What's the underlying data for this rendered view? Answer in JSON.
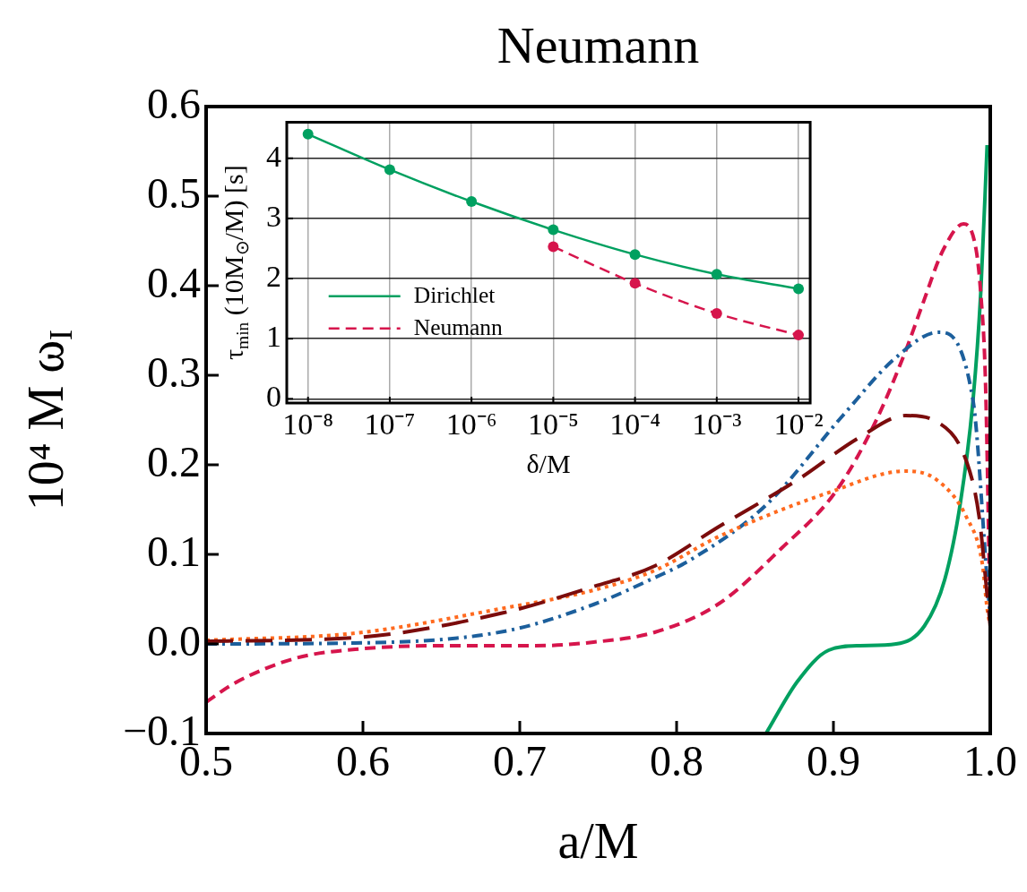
{
  "chart_data": [
    {
      "type": "line",
      "title": "Neumann",
      "xlabel": "a/M",
      "ylabel": "10⁴ M ω$_{I}$",
      "xlim": [
        0.5,
        1.0
      ],
      "ylim": [
        -0.1,
        0.6
      ],
      "xticks": [
        0.5,
        0.6,
        0.7,
        0.8,
        0.9,
        {
          "value": 1.0,
          "label": "1.0"
        }
      ],
      "yticks": [
        {
          "value": -0.1,
          "label": "−0.1"
        },
        {
          "value": 0,
          "label": "0.0"
        },
        0.1,
        0.2,
        0.3,
        0.4,
        0.5,
        0.6
      ],
      "series": [
        {
          "color": "#7b0c0c",
          "line_style": "longdashed",
          "x": [
            0.5,
            0.595,
            0.69,
            0.747,
            0.786,
            0.827,
            0.877,
            0.917,
            0.946,
            0.966,
            0.985,
            0.993,
            0.998,
            1.0
          ],
          "values": [
            0.003,
            0.007,
            0.035,
            0.064,
            0.087,
            0.131,
            0.183,
            0.231,
            0.255,
            0.248,
            0.203,
            0.141,
            0.055,
            0.02
          ]
        },
        {
          "color": "#ff6a1f",
          "line_style": "dotted",
          "x": [
            0.5,
            0.595,
            0.69,
            0.747,
            0.786,
            0.827,
            0.897,
            0.946,
            0.966,
            0.985,
            0.995,
            0.998,
            1.0
          ],
          "values": [
            0.004,
            0.012,
            0.04,
            0.06,
            0.082,
            0.12,
            0.169,
            0.193,
            0.183,
            0.141,
            0.089,
            0.04,
            0.02
          ]
        },
        {
          "color": "#1c5f9c",
          "line_style": "dashdot",
          "x": [
            0.5,
            0.595,
            0.69,
            0.747,
            0.786,
            0.808,
            0.857,
            0.906,
            0.94,
            0.967,
            0.989,
            0.998,
            1.0
          ],
          "values": [
            0,
            0.001,
            0.014,
            0.044,
            0.074,
            0.093,
            0.155,
            0.255,
            0.32,
            0.348,
            0.272,
            0.072,
            0.03
          ]
        },
        {
          "color": "#d6154c",
          "line_style": "dashed",
          "x": [
            0.5,
            0.519,
            0.557,
            0.595,
            0.653,
            0.71,
            0.747,
            0.786,
            0.827,
            0.867,
            0.901,
            0.926,
            0.946,
            0.957,
            0.97,
            0.983,
            0.991,
            0.994,
            0.997,
            1.0
          ],
          "values": [
            -0.065,
            -0.043,
            -0.016,
            -0.006,
            -0.002,
            -0.002,
            0.002,
            0.013,
            0.045,
            0.107,
            0.169,
            0.245,
            0.327,
            0.38,
            0.44,
            0.469,
            0.44,
            0.39,
            0.29,
            0.022
          ]
        },
        {
          "color": "#00a060",
          "line_style": "solid",
          "x": [
            0.857,
            0.877,
            0.897,
            0.917,
            0.94,
            0.958,
            0.971,
            0.981,
            0.989,
            0.994,
            0.998
          ],
          "values": [
            -0.1,
            -0.042,
            -0.007,
            -0.002,
            0,
            0.02,
            0.072,
            0.158,
            0.272,
            0.394,
            0.557
          ]
        }
      ]
    },
    {
      "type": "line",
      "xlabel": "δ/M",
      "ylabel": "τ$_{min}$ (10M$_{⊙}$/M) [s]",
      "log": "x",
      "marker": "circle",
      "grid": true,
      "legend": "left",
      "xlim": [
        5.5e-09,
        0.0139
      ],
      "ylim": [
        -0.07,
        4.6
      ],
      "xticks": [
        {
          "value": 1e-08,
          "label": "10⁻⁸"
        },
        {
          "value": 1e-07,
          "label": "10⁻⁷"
        },
        {
          "value": 1e-06,
          "label": "10⁻⁶"
        },
        {
          "value": 1e-05,
          "label": "10⁻⁵"
        },
        {
          "value": 0.0001,
          "label": "10⁻⁴"
        },
        {
          "value": 0.001,
          "label": "10⁻³"
        },
        {
          "value": 0.01,
          "label": "10⁻²"
        }
      ],
      "yticks": [
        0,
        1,
        2,
        3,
        4
      ],
      "series": [
        {
          "name": "Dirichlet",
          "color": "#00a060",
          "line_style": "solid",
          "x": [
            1e-08,
            1e-07,
            1e-06,
            1e-05,
            0.0001,
            0.001,
            0.01
          ],
          "values": [
            4.4,
            3.81,
            3.28,
            2.81,
            2.4,
            2.07,
            1.83
          ]
        },
        {
          "name": "Neumann",
          "color": "#d6154c",
          "line_style": "dashed",
          "x": [
            1e-05,
            0.0001,
            0.001,
            0.01
          ],
          "values": [
            2.53,
            1.92,
            1.42,
            1.06
          ]
        }
      ]
    }
  ]
}
